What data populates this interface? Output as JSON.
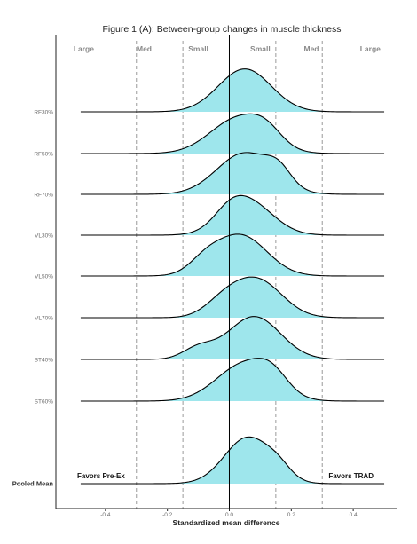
{
  "chart_data": {
    "type": "ridgeline",
    "title": "Figure 1 (A): Between-group changes in muscle thickness",
    "xlabel": "Standardized mean difference",
    "xlim": [
      -0.56,
      0.54
    ],
    "xticks": [
      -0.4,
      -0.2,
      0.0,
      0.2,
      0.4
    ],
    "xtick_labels": [
      "-0.4",
      "-0.2",
      "0.0",
      "0.2",
      "0.4"
    ],
    "zone_labels": [
      "Large",
      "Med",
      "Small",
      "Small",
      "Med",
      "Large"
    ],
    "zone_label_x": [
      -0.47,
      -0.275,
      -0.1,
      0.1,
      0.265,
      0.455
    ],
    "reference_lines": [
      -0.3,
      -0.15,
      0.15,
      0.3
    ],
    "zero_line": 0,
    "fill_color": "#9ee6ec",
    "rows": [
      {
        "label": "RF30%",
        "peak": 0.05,
        "spread": 0.085,
        "height": 0.78,
        "shoulders": []
      },
      {
        "label": "RF50%",
        "peak": 0.03,
        "spread": 0.09,
        "height": 0.72,
        "shoulders": [
          {
            "pos": 0.12,
            "amp": 0.35,
            "sd": 0.05
          }
        ]
      },
      {
        "label": "RF70%",
        "peak": 0.05,
        "spread": 0.09,
        "height": 0.76,
        "shoulders": [
          {
            "pos": 0.16,
            "amp": 0.35,
            "sd": 0.04
          }
        ]
      },
      {
        "label": "VL30%",
        "peak": 0.06,
        "spread": 0.08,
        "height": 0.72,
        "shoulders": [
          {
            "pos": 0.0,
            "amp": 0.3,
            "sd": 0.05
          }
        ]
      },
      {
        "label": "VL50%",
        "peak": 0.035,
        "spread": 0.085,
        "height": 0.76,
        "shoulders": [
          {
            "pos": -0.08,
            "amp": 0.25,
            "sd": 0.05
          }
        ]
      },
      {
        "label": "VL70%",
        "peak": 0.09,
        "spread": 0.08,
        "height": 0.74,
        "shoulders": [
          {
            "pos": -0.02,
            "amp": 0.35,
            "sd": 0.06
          }
        ]
      },
      {
        "label": "ST40%",
        "peak": 0.08,
        "spread": 0.085,
        "height": 0.78,
        "shoulders": [
          {
            "pos": -0.1,
            "amp": 0.25,
            "sd": 0.05
          }
        ]
      },
      {
        "label": "ST60%",
        "peak": 0.05,
        "spread": 0.09,
        "height": 0.78,
        "shoulders": [
          {
            "pos": 0.14,
            "amp": 0.4,
            "sd": 0.05
          }
        ]
      },
      {
        "label": "Pooled Mean",
        "peak": 0.06,
        "spread": 0.075,
        "height": 0.85,
        "shoulders": [
          {
            "pos": 0.16,
            "amp": 0.2,
            "sd": 0.04
          }
        ]
      }
    ],
    "annotations": {
      "left": "Favors Pre-Ex",
      "right": "Favors TRAD"
    }
  }
}
